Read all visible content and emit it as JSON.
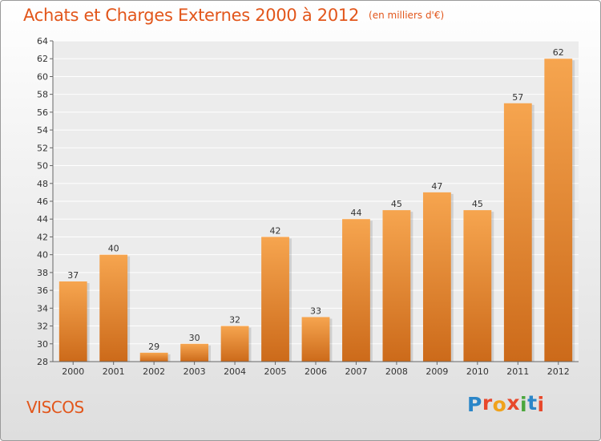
{
  "header": {
    "title": "Achats et Charges Externes 2000 à 2012",
    "unit": "(en milliers d'€)"
  },
  "footer": {
    "commune": "VISCOS",
    "logo_text": "Proxiti"
  },
  "colors": {
    "title": "#e2561b",
    "bar_light": "#f6a54f",
    "bar_dark": "#cc6a1a",
    "grid": "#ffffff",
    "logo_letters": [
      "#2b86c8",
      "#e8482b",
      "#f0a21b",
      "#e8482b",
      "#4aa63c",
      "#2b86c8",
      "#e8482b"
    ]
  },
  "chart_data": {
    "type": "bar",
    "title": "Achats et Charges Externes 2000 à 2012",
    "subtitle": "(en milliers d'€)",
    "categories": [
      "2000",
      "2001",
      "2002",
      "2003",
      "2004",
      "2005",
      "2006",
      "2007",
      "2008",
      "2009",
      "2010",
      "2011",
      "2012"
    ],
    "values": [
      37,
      40,
      29,
      30,
      32,
      42,
      33,
      44,
      45,
      47,
      45,
      57,
      62
    ],
    "ylim": [
      28,
      64
    ],
    "yticks": [
      28,
      30,
      32,
      34,
      36,
      38,
      40,
      42,
      44,
      46,
      48,
      50,
      52,
      54,
      56,
      58,
      60,
      62,
      64
    ],
    "grid": true,
    "data_labels": true
  }
}
